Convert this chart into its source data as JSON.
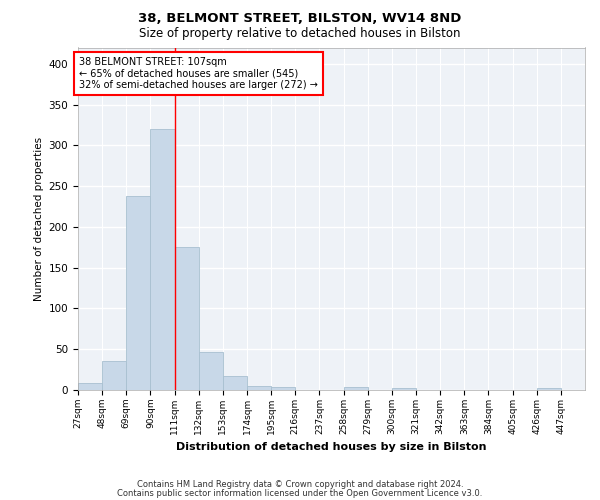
{
  "title1": "38, BELMONT STREET, BILSTON, WV14 8ND",
  "title2": "Size of property relative to detached houses in Bilston",
  "xlabel": "Distribution of detached houses by size in Bilston",
  "ylabel": "Number of detached properties",
  "bar_color": "#c8d8e8",
  "bar_edge_color": "#a8c0d0",
  "background_color": "#eef2f7",
  "grid_color": "#ffffff",
  "bins": [
    "27sqm",
    "48sqm",
    "69sqm",
    "90sqm",
    "111sqm",
    "132sqm",
    "153sqm",
    "174sqm",
    "195sqm",
    "216sqm",
    "237sqm",
    "258sqm",
    "279sqm",
    "300sqm",
    "321sqm",
    "342sqm",
    "363sqm",
    "384sqm",
    "405sqm",
    "426sqm",
    "447sqm"
  ],
  "values": [
    8,
    35,
    238,
    320,
    175,
    46,
    17,
    5,
    4,
    0,
    0,
    4,
    0,
    2,
    0,
    0,
    0,
    0,
    0,
    2,
    0
  ],
  "bin_edges": [
    27,
    48,
    69,
    90,
    111,
    132,
    153,
    174,
    195,
    216,
    237,
    258,
    279,
    300,
    321,
    342,
    363,
    384,
    405,
    426,
    447,
    468
  ],
  "property_size": 107,
  "red_line_x": 111,
  "annotation_text": "38 BELMONT STREET: 107sqm\n← 65% of detached houses are smaller (545)\n32% of semi-detached houses are larger (272) →",
  "ylim": [
    0,
    420
  ],
  "yticks": [
    0,
    50,
    100,
    150,
    200,
    250,
    300,
    350,
    400
  ],
  "footer1": "Contains HM Land Registry data © Crown copyright and database right 2024.",
  "footer2": "Contains public sector information licensed under the Open Government Licence v3.0."
}
